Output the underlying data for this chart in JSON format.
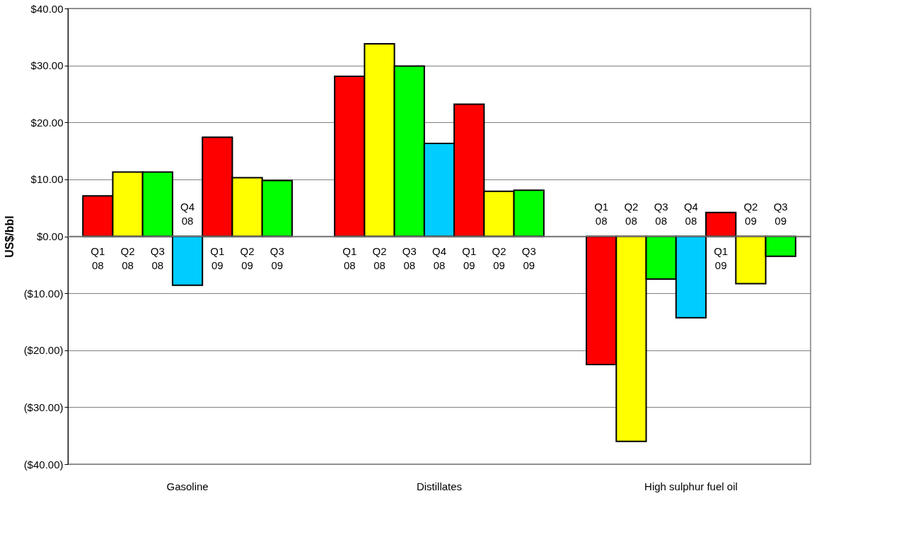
{
  "chart_data": {
    "type": "bar",
    "ylabel": "US$/bbl",
    "categories": [
      "Gasoline",
      "Distillates",
      "High sulphur fuel oil"
    ],
    "series": [
      {
        "name": "Q1 08",
        "color": "#ff0000",
        "values": [
          7.1,
          28.1,
          -22.5
        ]
      },
      {
        "name": "Q2 08",
        "color": "#ffff00",
        "values": [
          11.3,
          33.8,
          -36.0
        ]
      },
      {
        "name": "Q3 08",
        "color": "#00ff00",
        "values": [
          11.3,
          29.9,
          -7.5
        ]
      },
      {
        "name": "Q4 08",
        "color": "#00ccff",
        "values": [
          -8.6,
          16.3,
          -14.3
        ]
      },
      {
        "name": "Q1 09",
        "color": "#ff0000",
        "values": [
          17.4,
          23.2,
          4.2
        ]
      },
      {
        "name": "Q2 09",
        "color": "#ffff00",
        "values": [
          10.3,
          7.9,
          -8.3
        ]
      },
      {
        "name": "Q3 09",
        "color": "#00ff00",
        "values": [
          9.8,
          8.1,
          -3.5
        ]
      }
    ],
    "ylim": [
      -40,
      40
    ],
    "yticks": [
      {
        "value": -40,
        "label": "($40.00)"
      },
      {
        "value": -30,
        "label": "($30.00)"
      },
      {
        "value": -20,
        "label": "($20.00)"
      },
      {
        "value": -10,
        "label": "($10.00)"
      },
      {
        "value": 0,
        "label": "$0.00"
      },
      {
        "value": 10,
        "label": "$10.00"
      },
      {
        "value": 20,
        "label": "$20.00"
      },
      {
        "value": 30,
        "label": "$30.00"
      },
      {
        "value": 40,
        "label": "$40.00"
      }
    ],
    "grid": "y",
    "legend": false
  }
}
